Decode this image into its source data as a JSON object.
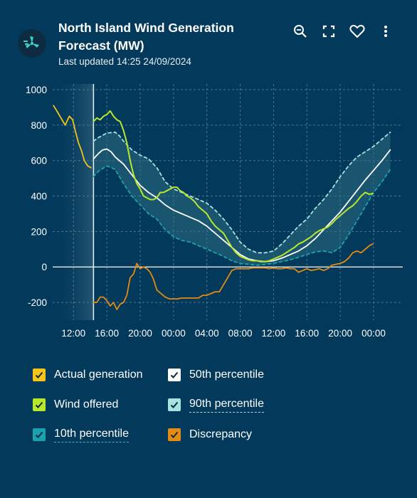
{
  "header": {
    "title": "North Island Wind Generation Forecast (MW)",
    "subtitle": "Last updated 14:25 24/09/2024",
    "icons": [
      "wind-turbine-logo-icon",
      "zoom-icon",
      "fullscreen-icon",
      "heart-icon",
      "more-vertical-icon"
    ]
  },
  "colors": {
    "background": "#03395a",
    "actual": "#f5c518",
    "offered": "#b9e82b",
    "p50": "#ffffff",
    "p90": "#a6e2e0",
    "p10": "#1aa3ad",
    "discrepancy": "#e38b13",
    "band": "#2e6e82"
  },
  "legend": [
    {
      "label": "Actual generation",
      "color": "#f5c518",
      "checked": true
    },
    {
      "label": "50th percentile",
      "color": "#ffffff",
      "checked": true
    },
    {
      "label": "Wind offered",
      "color": "#b9e82b",
      "checked": true
    },
    {
      "label": "90th percentile",
      "color": "#a6e2e0",
      "checked": true
    },
    {
      "label": "10th percentile",
      "color": "#1aa3ad",
      "checked": true
    },
    {
      "label": "Discrepancy",
      "color": "#e38b13",
      "checked": true
    }
  ],
  "chart_data": {
    "type": "line",
    "title": "North Island Wind Generation Forecast (MW)",
    "xlabel": "",
    "ylabel": "",
    "ylim": [
      -300,
      1000
    ],
    "xlim": [
      "09:30",
      "01:30+1"
    ],
    "x_unit": "hours from 00:00 on 24/09/2024",
    "x_ticks": [
      {
        "h": 12,
        "label": "12:00"
      },
      {
        "h": 16,
        "label": "16:00"
      },
      {
        "h": 20,
        "label": "20:00"
      },
      {
        "h": 24,
        "label": "00:00"
      },
      {
        "h": 28,
        "label": "04:00"
      },
      {
        "h": 32,
        "label": "08:00"
      },
      {
        "h": 36,
        "label": "12:00"
      },
      {
        "h": 40,
        "label": "16:00"
      },
      {
        "h": 44,
        "label": "20:00"
      },
      {
        "h": 48,
        "label": "00:00"
      }
    ],
    "y_ticks": [
      -200,
      0,
      200,
      400,
      600,
      800,
      1000
    ],
    "now_marker_hour": 14.4,
    "grid": true,
    "series": [
      {
        "name": "Actual generation",
        "color": "#f5c518",
        "style": "solid",
        "x": [
          9.6,
          10,
          10.5,
          11,
          11.5,
          11.9,
          12.2,
          12.6,
          13,
          13.3,
          13.7,
          14.1
        ],
        "y": [
          910,
          880,
          840,
          800,
          850,
          830,
          770,
          700,
          650,
          600,
          570,
          560
        ]
      },
      {
        "name": "Wind offered",
        "color": "#b9e82b",
        "style": "solid",
        "x": [
          14.4,
          14.8,
          15.2,
          15.6,
          16,
          16.4,
          16.8,
          17.2,
          17.6,
          18,
          18.4,
          18.8,
          19.2,
          19.6,
          20,
          20.4,
          20.8,
          21.2,
          21.6,
          22,
          22.4,
          22.8,
          23.2,
          23.6,
          24,
          24.4,
          24.8,
          25.2,
          25.6,
          26,
          26.5,
          27,
          27.5,
          28,
          28.5,
          29,
          29.5,
          30,
          30.5,
          31,
          31.5,
          32,
          32.5,
          33,
          33.5,
          34,
          34.5,
          35,
          35.5,
          36,
          36.5,
          37,
          37.5,
          38,
          38.5,
          39,
          39.5,
          40,
          40.5,
          41,
          41.5,
          42,
          42.5,
          43,
          43.5,
          44,
          44.5,
          45,
          45.5,
          46,
          46.5,
          47,
          47.5,
          47.9
        ],
        "y": [
          820,
          840,
          830,
          850,
          860,
          880,
          850,
          830,
          820,
          770,
          700,
          600,
          520,
          470,
          440,
          400,
          390,
          380,
          380,
          390,
          420,
          420,
          430,
          440,
          450,
          450,
          430,
          420,
          400,
          390,
          370,
          340,
          320,
          300,
          260,
          230,
          210,
          190,
          150,
          110,
          80,
          60,
          50,
          40,
          35,
          35,
          30,
          30,
          35,
          45,
          55,
          65,
          80,
          95,
          110,
          130,
          140,
          155,
          170,
          190,
          205,
          215,
          225,
          245,
          270,
          290,
          310,
          330,
          345,
          370,
          400,
          420,
          410,
          415
        ]
      },
      {
        "name": "50th percentile",
        "color": "#ffffff",
        "style": "solid",
        "x": [
          14.4,
          15,
          15.5,
          16,
          16.5,
          17,
          17.5,
          18,
          19,
          20,
          21,
          22,
          23,
          24,
          25,
          26,
          27,
          28,
          29,
          30,
          31,
          32,
          33,
          34,
          35,
          36,
          37,
          38,
          39,
          40,
          41,
          42,
          43,
          44,
          45,
          46,
          47,
          48,
          49,
          50
        ],
        "y": [
          610,
          640,
          660,
          665,
          650,
          620,
          600,
          580,
          520,
          460,
          420,
          390,
          350,
          320,
          300,
          280,
          260,
          230,
          190,
          150,
          110,
          70,
          45,
          35,
          30,
          35,
          50,
          70,
          90,
          120,
          160,
          210,
          260,
          310,
          370,
          430,
          490,
          545,
          600,
          660
        ]
      },
      {
        "name": "90th percentile",
        "color": "#a6e2e0",
        "style": "dashed",
        "x": [
          14.4,
          15,
          16,
          17,
          17.5,
          18,
          19,
          20,
          21,
          22,
          23,
          24,
          25,
          26,
          27,
          28,
          29,
          30,
          31,
          32,
          33,
          34,
          35,
          36,
          37,
          38,
          39,
          40,
          41,
          42,
          43,
          44,
          45,
          46,
          47,
          48,
          49,
          50
        ],
        "y": [
          710,
          730,
          755,
          760,
          740,
          710,
          660,
          630,
          610,
          560,
          480,
          440,
          420,
          400,
          380,
          360,
          320,
          270,
          210,
          140,
          100,
          80,
          80,
          90,
          130,
          180,
          230,
          270,
          330,
          380,
          440,
          510,
          570,
          620,
          650,
          680,
          720,
          760
        ]
      },
      {
        "name": "10th percentile",
        "color": "#1aa3ad",
        "style": "dashed",
        "x": [
          14.4,
          15,
          16,
          17,
          18,
          19,
          20,
          21,
          22,
          23,
          24,
          25,
          26,
          27,
          28,
          29,
          30,
          31,
          32,
          33,
          34,
          35,
          36,
          37,
          38,
          39,
          40,
          41,
          42,
          43,
          44,
          45,
          46,
          47,
          48,
          49,
          50
        ],
        "y": [
          510,
          540,
          570,
          550,
          470,
          400,
          350,
          300,
          270,
          210,
          170,
          150,
          140,
          120,
          100,
          80,
          60,
          35,
          20,
          15,
          10,
          15,
          20,
          30,
          40,
          55,
          70,
          85,
          90,
          80,
          110,
          180,
          260,
          340,
          420,
          480,
          550
        ]
      },
      {
        "name": "Discrepancy",
        "color": "#e38b13",
        "style": "solid",
        "x": [
          14.4,
          14.8,
          15.2,
          15.6,
          16,
          16.4,
          16.8,
          17.2,
          17.6,
          18,
          18.4,
          18.8,
          19.2,
          19.6,
          20,
          20.4,
          20.8,
          21.2,
          21.6,
          22,
          22.5,
          23,
          23.5,
          24,
          24.5,
          25,
          25.5,
          26,
          26.5,
          27,
          27.5,
          28,
          28.5,
          29,
          29.5,
          30,
          30.5,
          31,
          31.5,
          32,
          32.5,
          33,
          33.5,
          34,
          34.5,
          35,
          35.5,
          36,
          36.5,
          37,
          37.5,
          38,
          38.5,
          39,
          39.5,
          40,
          40.5,
          41,
          41.5,
          42,
          42.5,
          43,
          43.5,
          44,
          44.5,
          45,
          45.5,
          46,
          46.5,
          47,
          47.5,
          47.9
        ],
        "y": [
          -200,
          -200,
          -170,
          -170,
          -190,
          -220,
          -200,
          -240,
          -210,
          -200,
          -160,
          -60,
          -40,
          20,
          -10,
          0,
          -10,
          -30,
          -70,
          -130,
          -150,
          -170,
          -180,
          -180,
          -180,
          -175,
          -175,
          -175,
          -175,
          -175,
          -160,
          -160,
          -150,
          -140,
          -140,
          -100,
          -60,
          -20,
          -10,
          -10,
          -10,
          -10,
          -5,
          -5,
          -5,
          -5,
          -10,
          -5,
          -10,
          -10,
          -5,
          -10,
          -10,
          -30,
          -20,
          -10,
          -20,
          -15,
          -10,
          -20,
          -10,
          10,
          15,
          20,
          30,
          50,
          80,
          90,
          80,
          100,
          120,
          130
        ]
      }
    ]
  }
}
